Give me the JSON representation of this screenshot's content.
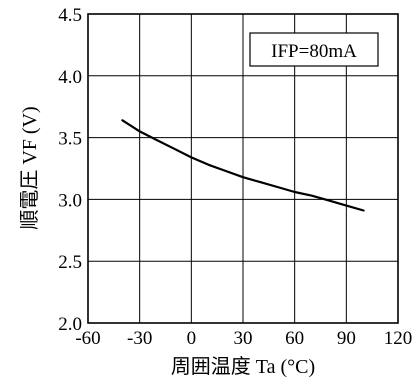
{
  "chart_data": {
    "type": "line",
    "title": "",
    "xlabel": "周囲温度 Ta (°C)",
    "ylabel": "順電圧 VF (V)",
    "xlim": [
      -60,
      120
    ],
    "ylim": [
      2.0,
      4.5
    ],
    "x_ticks": [
      -60,
      -30,
      0,
      30,
      60,
      90,
      120
    ],
    "y_ticks": [
      2.0,
      2.5,
      3.0,
      3.5,
      4.0,
      4.5
    ],
    "x_tick_labels": [
      "-60",
      "-30",
      "0",
      "30",
      "60",
      "90",
      "120"
    ],
    "y_tick_labels": [
      "2.0",
      "2.5",
      "3.0",
      "3.5",
      "4.0",
      "4.5"
    ],
    "grid": true,
    "legend_position": "top-right",
    "annotation": "IFP=80mA",
    "series": [
      {
        "x": [
          -40,
          -30,
          -20,
          -10,
          0,
          10,
          20,
          30,
          40,
          50,
          60,
          70,
          80,
          90,
          100
        ],
        "values": [
          3.64,
          3.55,
          3.48,
          3.41,
          3.34,
          3.28,
          3.23,
          3.18,
          3.14,
          3.1,
          3.06,
          3.03,
          2.99,
          2.95,
          2.91
        ]
      }
    ]
  }
}
